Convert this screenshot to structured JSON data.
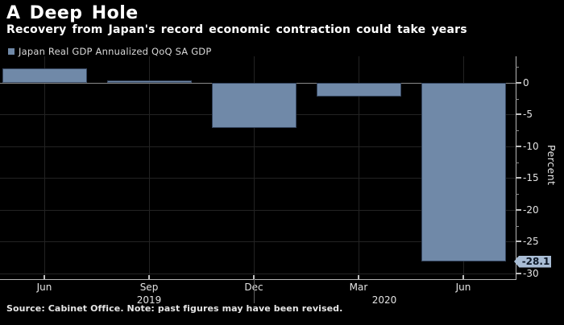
{
  "header": {
    "title": "A Deep Hole",
    "subtitle": "Recovery from Japan's record economic contraction could take years"
  },
  "legend": {
    "label": "Japan Real GDP Annualized QoQ SA GDP",
    "marker_color": "#7089a8"
  },
  "chart_data": {
    "type": "bar",
    "title": "A Deep Hole",
    "subtitle": "Recovery from Japan's record economic contraction could take years",
    "series_name": "Japan Real GDP Annualized QoQ SA GDP",
    "categories": [
      "Jun",
      "Sep",
      "Dec",
      "Mar",
      "Jun"
    ],
    "category_years": [
      "2019",
      "2019",
      "2019",
      "2020",
      "2020"
    ],
    "values": [
      2.2,
      0.3,
      -7.1,
      -2.2,
      -28.1
    ],
    "year_labels": [
      {
        "text": "2019",
        "anchor_index": 1
      },
      {
        "text": "2020",
        "anchor_index": 3
      }
    ],
    "xlabel": "",
    "ylabel": "Percent",
    "ylim": [
      -30,
      4.1
    ],
    "yticks": [
      0,
      -5,
      -10,
      -15,
      -20,
      -25,
      -30
    ],
    "ytick_labels": [
      "0",
      "-5",
      "-10",
      "-15",
      "-20",
      "-25",
      "-30"
    ],
    "ytick_minor_step": 2.5,
    "grid": true,
    "legend_position": "top-left",
    "bar_color": "#7089a8",
    "background_color": "#000000",
    "annotation": {
      "text": "-28.1",
      "value": -28.1,
      "bg_color": "#a9bdd5",
      "text_color": "#0c1726"
    }
  },
  "source": {
    "text": "Source: Cabinet Office. Note: past figures may have been revised."
  }
}
